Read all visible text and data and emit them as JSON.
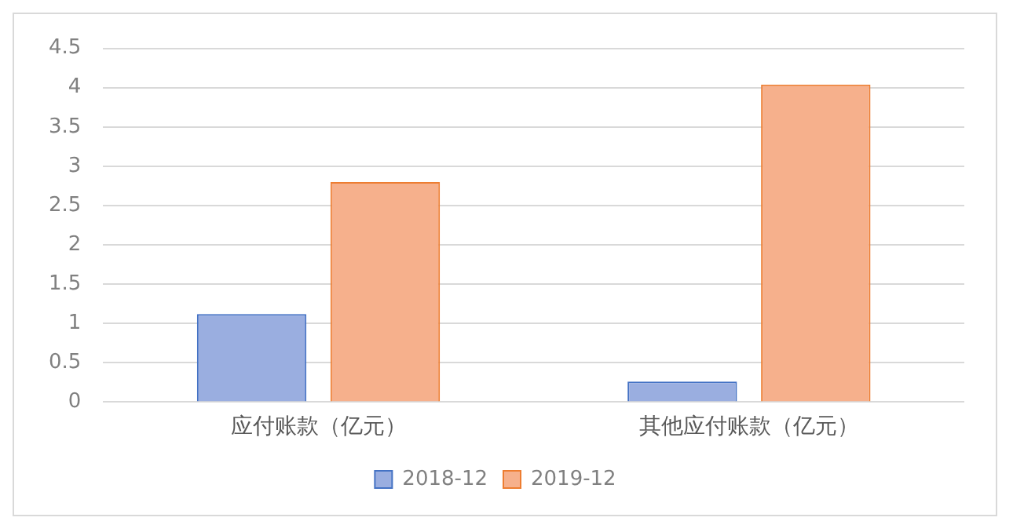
{
  "chart_data": {
    "type": "bar",
    "categories": [
      "应付账款（亿元）",
      "其他应付账款（亿元）"
    ],
    "series": [
      {
        "name": "2018-12",
        "color": "#9aaee0",
        "values": [
          1.12,
          0.26
        ]
      },
      {
        "name": "2019-12",
        "color": "#f6b08c",
        "values": [
          2.8,
          4.04
        ]
      }
    ],
    "ylim": [
      0,
      4.5
    ],
    "yticks": [
      0,
      0.5,
      1,
      1.5,
      2,
      2.5,
      3,
      3.5,
      4,
      4.5
    ],
    "grid": "y",
    "legend": "bottom"
  }
}
